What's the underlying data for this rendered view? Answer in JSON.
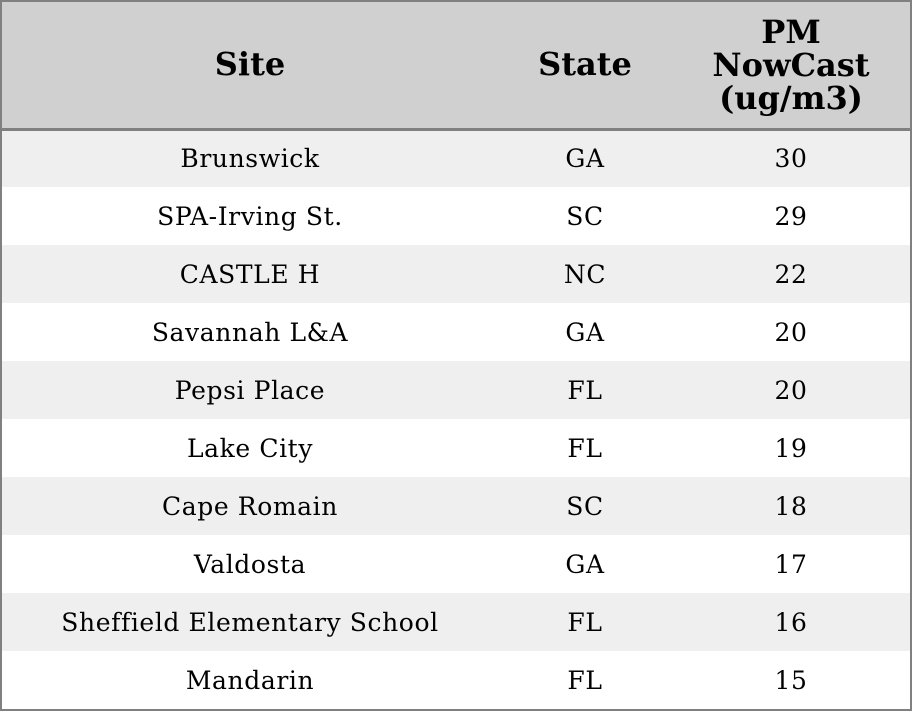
{
  "chart_data": {
    "type": "table",
    "columns": [
      "Site",
      "State",
      "PM\nNowCast\n(ug/m3)"
    ],
    "rows": [
      {
        "site": "Brunswick",
        "state": "GA",
        "pm": 30
      },
      {
        "site": "SPA-Irving St.",
        "state": "SC",
        "pm": 29
      },
      {
        "site": "CASTLE H",
        "state": "NC",
        "pm": 22
      },
      {
        "site": "Savannah L&A",
        "state": "GA",
        "pm": 20
      },
      {
        "site": "Pepsi Place",
        "state": "FL",
        "pm": 20
      },
      {
        "site": "Lake City",
        "state": "FL",
        "pm": 19
      },
      {
        "site": "Cape Romain",
        "state": "SC",
        "pm": 18
      },
      {
        "site": "Valdosta",
        "state": "GA",
        "pm": 17
      },
      {
        "site": "Sheffield Elementary School",
        "state": "FL",
        "pm": 16
      },
      {
        "site": "Mandarin",
        "state": "FL",
        "pm": 15
      }
    ]
  },
  "colors": {
    "header_bg": "#d0d0d0",
    "stripe_bg": "#efefef",
    "row_bg": "#ffffff",
    "border": "#808080"
  }
}
